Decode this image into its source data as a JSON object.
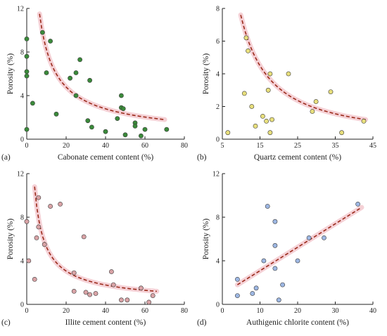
{
  "chart_data": [
    {
      "panel": "(a)",
      "type": "scatter",
      "xlabel": "Cabonate cement content (%)",
      "ylabel": "Porosity (%)",
      "xlim": [
        0,
        80
      ],
      "ylim": [
        0,
        12
      ],
      "xticks": [
        "0",
        "20",
        "40",
        "60",
        "80"
      ],
      "yticks": [
        "0",
        "4",
        "8",
        "12"
      ],
      "marker_color": "#3a8a3a",
      "trend": {
        "form": "power",
        "x": [
          6.5,
          70
        ],
        "y": [
          11.5,
          1.8
        ]
      },
      "points": [
        [
          0,
          9.2
        ],
        [
          0,
          7.6
        ],
        [
          0,
          6.2
        ],
        [
          0,
          5.8
        ],
        [
          0,
          0.9
        ],
        [
          3,
          3.3
        ],
        [
          8,
          9.8
        ],
        [
          12,
          9.0
        ],
        [
          10,
          6.1
        ],
        [
          15,
          2.3
        ],
        [
          22,
          5.6
        ],
        [
          25,
          6.1
        ],
        [
          27,
          7.3
        ],
        [
          25,
          4.0
        ],
        [
          32,
          5.4
        ],
        [
          31,
          1.7
        ],
        [
          33,
          1.1
        ],
        [
          40,
          0.7
        ],
        [
          48,
          4.0
        ],
        [
          48,
          2.9
        ],
        [
          49,
          2.8
        ],
        [
          46,
          1.9
        ],
        [
          50,
          0.4
        ],
        [
          55,
          1.5
        ],
        [
          55,
          1.2
        ],
        [
          58,
          0.3
        ],
        [
          60,
          0.9
        ],
        [
          71,
          0.9
        ]
      ]
    },
    {
      "panel": "(b)",
      "type": "scatter",
      "xlabel": "Quartz cement content (%)",
      "ylabel": "Porosity (%)",
      "xlim": [
        5,
        46
      ],
      "ylim": [
        0,
        8
      ],
      "xticks": [
        "5",
        "15",
        "25",
        "35",
        "45"
      ],
      "yticks": [
        "0",
        "2",
        "4",
        "6",
        "8"
      ],
      "marker_color": "#e8df7c",
      "trend": {
        "form": "power",
        "x": [
          10,
          44
        ],
        "y": [
          7.6,
          1.2
        ]
      },
      "points": [
        [
          6.5,
          0.4
        ],
        [
          11,
          2.8
        ],
        [
          11.5,
          6.2
        ],
        [
          12,
          5.4
        ],
        [
          13,
          2.0
        ],
        [
          14,
          0.8
        ],
        [
          16,
          1.4
        ],
        [
          17,
          1.1
        ],
        [
          17.5,
          3.0
        ],
        [
          18,
          4.0
        ],
        [
          18,
          0.4
        ],
        [
          18.5,
          1.2
        ],
        [
          23,
          4.0
        ],
        [
          29.5,
          1.7
        ],
        [
          30.5,
          2.3
        ],
        [
          34.5,
          2.9
        ],
        [
          37.5,
          0.4
        ],
        [
          43.5,
          1.1
        ]
      ]
    },
    {
      "panel": "(c)",
      "type": "scatter",
      "xlabel": "Illite cement content (%)",
      "ylabel": "Porosity (%)",
      "xlim": [
        0,
        80
      ],
      "ylim": [
        0,
        12
      ],
      "xticks": [
        "0",
        "20",
        "40",
        "60",
        "80"
      ],
      "yticks": [
        "0",
        "4",
        "8",
        "12"
      ],
      "marker_color": "#d9a3a6",
      "trend": {
        "form": "power",
        "x": [
          4,
          66
        ],
        "y": [
          10.8,
          1.2
        ]
      },
      "points": [
        [
          0,
          7.6
        ],
        [
          1,
          4.0
        ],
        [
          4,
          2.3
        ],
        [
          5,
          6.1
        ],
        [
          6,
          9.8
        ],
        [
          6,
          7.1
        ],
        [
          9,
          5.5
        ],
        [
          12,
          9.0
        ],
        [
          17,
          9.2
        ],
        [
          24,
          2.9
        ],
        [
          24,
          1.2
        ],
        [
          29,
          6.2
        ],
        [
          30,
          1.1
        ],
        [
          32,
          0.9
        ],
        [
          35,
          1.0
        ],
        [
          43,
          3.0
        ],
        [
          44,
          1.8
        ],
        [
          48,
          0.4
        ],
        [
          51,
          0.4
        ],
        [
          58,
          1.5
        ],
        [
          62,
          0.2
        ],
        [
          64,
          0.8
        ]
      ]
    },
    {
      "panel": "(d)",
      "type": "scatter",
      "xlabel": "Authigenic chlorite content (%)",
      "ylabel": "Porosity (%)",
      "xlim": [
        0,
        40
      ],
      "ylim": [
        0,
        12
      ],
      "xticks": [
        "0",
        "10",
        "20",
        "30",
        "40"
      ],
      "yticks": [
        "0",
        "4",
        "8",
        "12"
      ],
      "marker_color": "#9db7e3",
      "trend": {
        "form": "linear",
        "x": [
          4,
          37
        ],
        "y": [
          1.8,
          8.9
        ]
      },
      "points": [
        [
          4,
          2.3
        ],
        [
          4,
          0.8
        ],
        [
          8,
          1.0
        ],
        [
          9,
          1.5
        ],
        [
          11,
          4.0
        ],
        [
          12,
          9.0
        ],
        [
          14,
          7.6
        ],
        [
          14,
          5.4
        ],
        [
          14,
          3.3
        ],
        [
          16,
          1.8
        ],
        [
          15,
          0.4
        ],
        [
          20,
          4.0
        ],
        [
          23,
          6.1
        ],
        [
          27,
          6.1
        ],
        [
          36,
          9.2
        ]
      ]
    }
  ]
}
